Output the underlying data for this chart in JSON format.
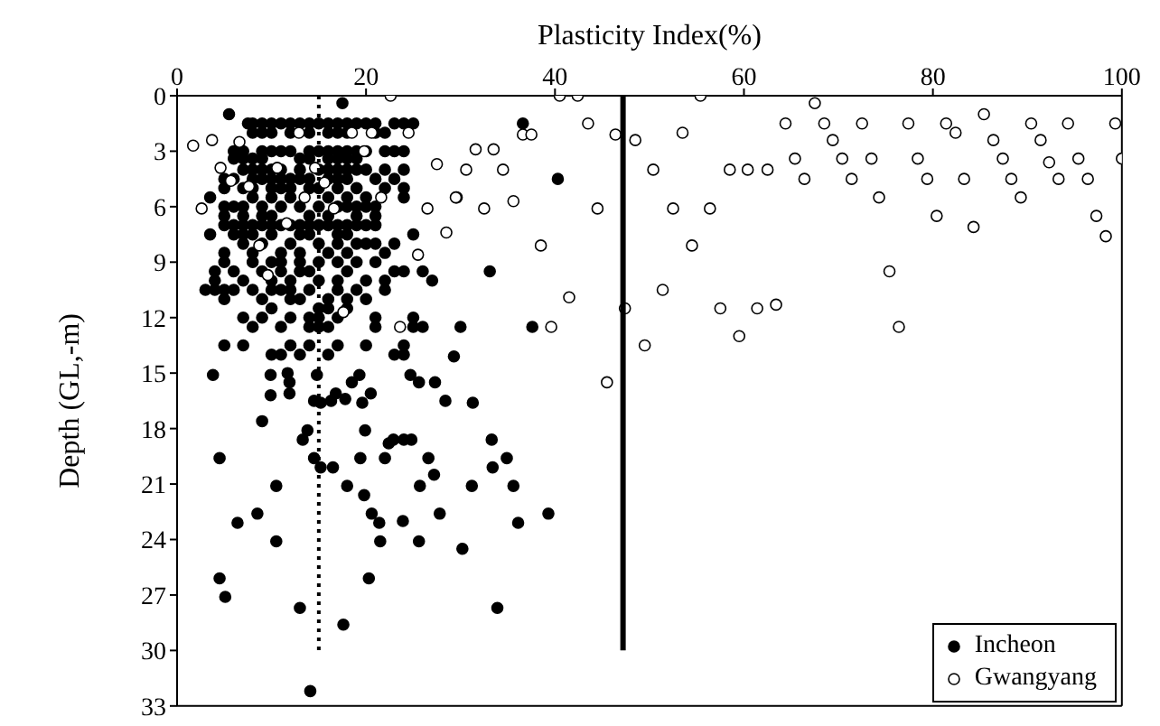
{
  "chart_data": {
    "type": "scatter",
    "xlabel": "Plasticity Index(%)",
    "ylabel": "Depth (GL,-m)",
    "xlim": [
      0,
      100
    ],
    "xticks": [
      0,
      20,
      40,
      60,
      80,
      100
    ],
    "ylim": [
      33,
      0
    ],
    "yticks": [
      0,
      3,
      6,
      9,
      12,
      15,
      18,
      21,
      24,
      27,
      30,
      33
    ],
    "legend": "bottom right",
    "marker": "circle",
    "series": [
      {
        "name": "Incheon",
        "color": "#000000",
        "x": [
          17.5,
          5.5,
          7.5,
          8,
          9,
          10,
          11,
          12,
          13,
          14,
          15,
          16,
          17,
          18,
          19,
          20,
          21,
          23,
          24,
          25,
          8,
          9,
          10,
          12,
          14,
          16,
          17,
          18,
          21,
          22,
          6,
          7,
          9,
          10,
          11,
          12,
          14,
          15,
          16,
          17,
          18,
          19,
          20,
          22,
          23,
          24,
          6,
          7,
          8,
          9,
          13,
          14,
          16,
          17,
          18,
          19,
          7,
          8,
          9,
          10,
          11,
          13,
          15,
          16,
          17,
          18,
          19,
          20,
          22,
          24,
          5,
          6,
          8,
          9,
          10,
          11,
          12,
          13,
          14,
          16,
          17,
          18,
          21,
          23,
          5,
          7,
          8,
          10,
          11,
          12,
          14,
          15,
          17,
          19,
          22,
          24,
          3.5,
          8,
          10,
          12,
          16,
          18,
          20,
          24,
          5,
          6,
          7,
          9,
          11,
          13,
          15,
          17,
          18,
          19,
          20,
          21,
          5,
          7,
          9,
          10,
          14,
          16,
          19,
          21,
          5,
          6,
          7,
          8,
          9,
          10,
          11,
          12,
          13,
          14,
          15,
          16,
          17,
          18,
          19,
          20,
          21,
          3.5,
          6,
          7,
          8,
          10,
          13,
          14,
          17,
          18,
          25,
          7,
          9,
          12,
          15,
          17,
          19,
          20,
          21,
          23,
          5,
          8,
          11,
          13,
          16,
          18,
          22,
          5,
          8,
          10,
          11,
          13,
          15,
          17,
          19,
          21,
          4,
          6,
          9,
          11,
          13,
          14,
          18,
          23,
          24,
          26,
          4,
          7,
          10,
          12,
          15,
          17,
          20,
          22,
          27,
          3,
          4,
          5,
          6,
          8,
          10,
          11,
          12,
          14,
          17,
          19,
          22,
          5,
          9,
          12,
          13,
          16,
          18,
          20,
          10,
          15,
          16,
          18,
          7,
          9,
          12,
          14,
          15,
          17,
          21,
          25,
          8,
          11,
          14,
          15,
          16,
          21,
          25,
          26,
          5,
          7,
          12,
          14,
          17,
          20,
          24,
          10,
          11,
          13,
          16,
          23,
          24,
          3.8,
          9.9,
          11.7,
          11.9,
          14.8,
          19.3,
          18.5,
          24.7,
          25.6,
          27.3,
          9.9,
          11.9,
          14.5,
          15.2,
          16.3,
          16.8,
          17.8,
          19.6,
          20.5,
          28.4,
          31.3,
          9,
          13.8,
          13.3,
          19.9,
          22.4,
          22.9,
          24,
          24.8,
          33.3,
          4.5,
          14.5,
          15.2,
          16.5,
          19.4,
          22,
          26.6,
          27.2,
          33.4,
          34.9,
          10.5,
          18,
          25.7,
          31.2,
          35.6,
          19.8,
          8.5,
          20.6,
          27.8,
          39.3,
          6.4,
          21.4,
          23.9,
          36.1,
          10.5,
          21.5,
          25.6,
          30.2,
          4.5,
          20.3,
          5.1,
          13,
          33.9,
          17.6,
          14.1,
          36.6,
          40.3,
          33.1,
          30,
          37.6,
          29.3
        ],
        "values": [
          0.4,
          1,
          1.5,
          1.5,
          1.5,
          1.5,
          1.5,
          1.5,
          1.5,
          1.5,
          1.5,
          1.5,
          1.5,
          1.5,
          1.5,
          1.5,
          1.5,
          1.5,
          1.5,
          1.5,
          2,
          2,
          2,
          2,
          2,
          2,
          2,
          2,
          2,
          2,
          3,
          3,
          3,
          3,
          3,
          3,
          3,
          3,
          3,
          3,
          3,
          3,
          3,
          3,
          3,
          3,
          3.4,
          3.4,
          3.4,
          3.4,
          3.4,
          3.4,
          3.4,
          3.4,
          3.4,
          3.4,
          4,
          4,
          4,
          4,
          4,
          4,
          4,
          4,
          4,
          4,
          4,
          4,
          4,
          4,
          4.5,
          4.5,
          4.5,
          4.5,
          4.5,
          4.5,
          4.5,
          4.5,
          4.5,
          4.5,
          4.5,
          4.5,
          4.5,
          4.5,
          5,
          5,
          5,
          5,
          5,
          5,
          5,
          5,
          5,
          5,
          5,
          5,
          5.5,
          5.5,
          5.5,
          5.5,
          5.5,
          5.5,
          5.5,
          5.5,
          6,
          6,
          6,
          6,
          6,
          6,
          6,
          6,
          6,
          6,
          6,
          6,
          6.5,
          6.5,
          6.5,
          6.5,
          6.5,
          6.5,
          6.5,
          6.5,
          7,
          7,
          7,
          7,
          7,
          7,
          7,
          7,
          7,
          7,
          7,
          7,
          7,
          7,
          7,
          7,
          7,
          7.5,
          7.5,
          7.5,
          7.5,
          7.5,
          7.5,
          7.5,
          7.5,
          7.5,
          7.5,
          8,
          8,
          8,
          8,
          8,
          8,
          8,
          8,
          8,
          8.5,
          8.5,
          8.5,
          8.5,
          8.5,
          8.5,
          8.5,
          9,
          9,
          9,
          9,
          9,
          9,
          9,
          9,
          9,
          9.5,
          9.5,
          9.5,
          9.5,
          9.5,
          9.5,
          9.5,
          9.5,
          9.5,
          9.5,
          10,
          10,
          10,
          10,
          10,
          10,
          10,
          10,
          10,
          10.5,
          10.5,
          10.5,
          10.5,
          10.5,
          10.5,
          10.5,
          10.5,
          10.5,
          10.5,
          10.5,
          10.5,
          11,
          11,
          11,
          11,
          11,
          11,
          11,
          11.5,
          11.5,
          11.5,
          11.5,
          12,
          12,
          12,
          12,
          12,
          12,
          12,
          12,
          12.5,
          12.5,
          12.5,
          12.5,
          12.5,
          12.5,
          12.5,
          12.5,
          13.5,
          13.5,
          13.5,
          13.5,
          13.5,
          13.5,
          13.5,
          14,
          14,
          14,
          14,
          14,
          14,
          15.1,
          15.1,
          15,
          15.5,
          15.1,
          15.1,
          15.5,
          15.1,
          15.5,
          15.5,
          16.2,
          16.1,
          16.5,
          16.6,
          16.5,
          16.1,
          16.4,
          16.6,
          16.1,
          16.5,
          16.6,
          17.6,
          18.1,
          18.6,
          18.1,
          18.8,
          18.6,
          18.6,
          18.6,
          18.6,
          19.6,
          19.6,
          20.1,
          20.1,
          19.6,
          19.6,
          19.6,
          20.5,
          20.1,
          19.6,
          21.1,
          21.1,
          21.1,
          21.1,
          21.1,
          21.6,
          22.6,
          22.6,
          22.6,
          22.6,
          23.1,
          23.1,
          23,
          23.1,
          24.1,
          24.1,
          24.1,
          24.5,
          26.1,
          26.1,
          27.1,
          27.7,
          27.7,
          28.6,
          32.2,
          1.5,
          4.5,
          9.5,
          12.5,
          12.5,
          14.1
        ]
      },
      {
        "name": "Gwangyang",
        "color": "#ffffff",
        "x": [
          40.5,
          42.4,
          43.5,
          36.6,
          37.5,
          46.4,
          48.5,
          31.6,
          33.5,
          30.6,
          34.5,
          29.6,
          32.5,
          35.6,
          44.5,
          38.5,
          41.5,
          39.6,
          47.4,
          45.5,
          49.5,
          50.4,
          53.5,
          55.4,
          52.5,
          54.5,
          51.4,
          56.4,
          58.5,
          60.4,
          62.5,
          57.5,
          59.5,
          61.4,
          63.4,
          64.4,
          65.4,
          66.4,
          67.5,
          68.5,
          69.4,
          70.4,
          71.4,
          72.5,
          73.5,
          74.3,
          75.4,
          76.4,
          77.4,
          78.4,
          79.4,
          80.4,
          81.4,
          82.4,
          83.3,
          84.3,
          85.4,
          86.4,
          87.4,
          88.3,
          89.3,
          90.4,
          91.4,
          92.3,
          93.3,
          94.3,
          95.4,
          96.4,
          97.3,
          98.3,
          99.3,
          100,
          22.6,
          1.7,
          3.7,
          6.6,
          18.5,
          20.6,
          24.5,
          12.9,
          19.8,
          27.5,
          4.6,
          10.6,
          14.6,
          15.6,
          5.7,
          7.6,
          2.6,
          13.5,
          21.6,
          29.5,
          16.6,
          26.5,
          11.6,
          28.5,
          8.7,
          25.5,
          9.6,
          17.6,
          23.6
        ],
        "values": [
          0,
          0,
          1.5,
          2.1,
          2.1,
          2.1,
          2.4,
          2.9,
          2.9,
          4,
          4,
          5.5,
          6.1,
          5.7,
          6.1,
          8.1,
          10.9,
          12.5,
          11.5,
          15.5,
          13.5,
          4,
          2,
          0,
          6.1,
          8.1,
          10.5,
          6.1,
          4,
          4,
          4,
          11.5,
          13,
          11.5,
          11.3,
          1.5,
          3.4,
          4.5,
          0.4,
          1.5,
          2.4,
          3.4,
          4.5,
          1.5,
          3.4,
          5.5,
          9.5,
          12.5,
          1.5,
          3.4,
          4.5,
          6.5,
          1.5,
          2,
          4.5,
          7.1,
          1,
          2.4,
          3.4,
          4.5,
          5.5,
          1.5,
          2.4,
          3.6,
          4.5,
          1.5,
          3.4,
          4.5,
          6.5,
          7.6,
          1.5,
          3.4,
          0,
          2.7,
          2.4,
          2.5,
          2,
          2,
          2,
          2,
          3,
          3.7,
          3.9,
          3.9,
          3.9,
          4.7,
          4.6,
          4.9,
          6.1,
          5.5,
          5.5,
          5.5,
          6.1,
          6.1,
          6.9,
          7.4,
          8.1,
          8.6,
          9.7,
          11.7,
          12.5
        ]
      },
      {
        "type": "line",
        "color": "#000000",
        "line_style": "dotted",
        "marker": "none",
        "x": [
          15,
          15
        ],
        "values": [
          0,
          30
        ]
      },
      {
        "type": "line",
        "color": "#000000",
        "line_style": "solid",
        "marker": "none",
        "x": [
          47.2,
          47.2
        ],
        "values": [
          0,
          30
        ]
      }
    ]
  }
}
